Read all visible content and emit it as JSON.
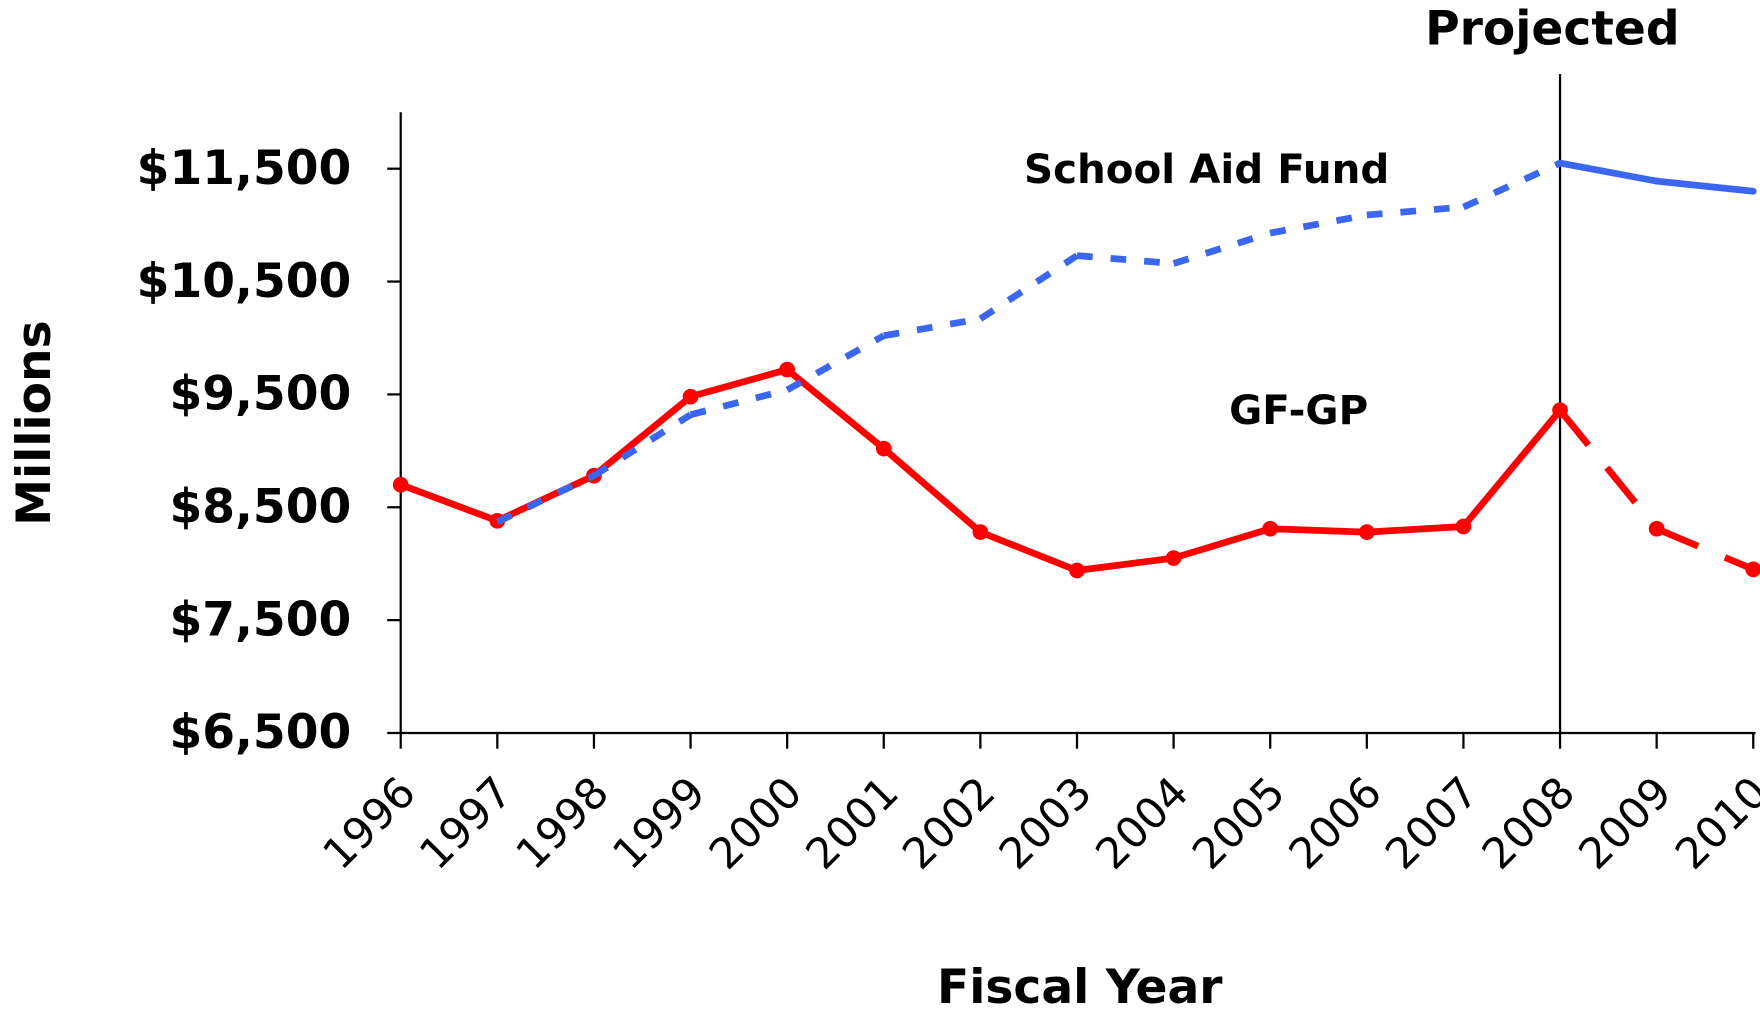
{
  "chart_data": {
    "type": "line",
    "y_axis_label": "Millions",
    "x_axis_label": "Fiscal Year",
    "annotation": "Projected",
    "projected_start": "2008",
    "categories": [
      "1996",
      "1997",
      "1998",
      "1999",
      "2000",
      "2001",
      "2002",
      "2003",
      "2004",
      "2005",
      "2006",
      "2007",
      "2008",
      "2009",
      "2010"
    ],
    "series": [
      {
        "name": "GF-GP",
        "color": "#ff0000",
        "label_color": "#109a94",
        "markers": true,
        "actual_style": "solid",
        "projected_style": "dashed",
        "values": [
          8700,
          8380,
          8780,
          9480,
          9720,
          9020,
          8280,
          7940,
          8050,
          8310,
          8280,
          8330,
          9360,
          8310,
          7950
        ]
      },
      {
        "name": "School Aid Fund",
        "color": "#3a66f0",
        "label_color": "#2f6bff",
        "markers": false,
        "actual_style": "dotted",
        "projected_style": "solid",
        "values": [
          null,
          8370,
          8780,
          9320,
          9540,
          10020,
          10170,
          10730,
          10660,
          10930,
          11090,
          11160,
          11550,
          11390,
          11300
        ]
      }
    ],
    "ylim": [
      6500,
      12000
    ],
    "yticks": [
      {
        "value": 6500,
        "label": "$6,500"
      },
      {
        "value": 7500,
        "label": "$7,500"
      },
      {
        "value": 8500,
        "label": "$8,500"
      },
      {
        "value": 9500,
        "label": "$9,500"
      },
      {
        "value": 10500,
        "label": "$10,500"
      },
      {
        "value": 11500,
        "label": "$11,500"
      }
    ],
    "grid": false
  }
}
